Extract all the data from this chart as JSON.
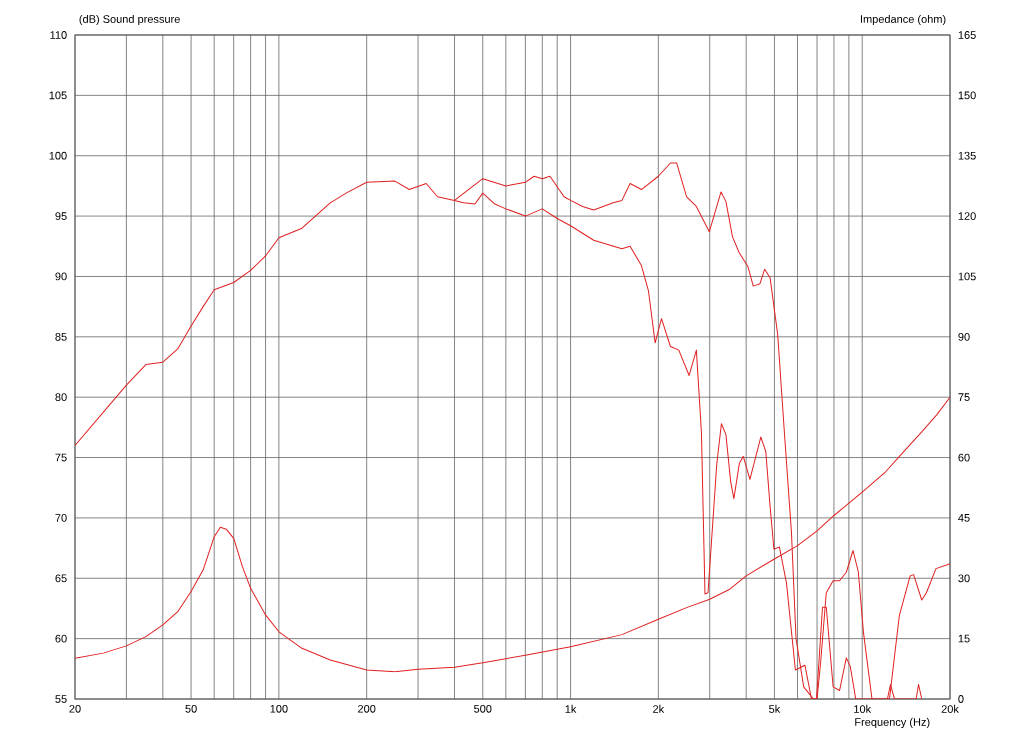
{
  "chart_data": {
    "type": "line",
    "xlabel": "Frequency  (Hz)",
    "ylabel": "(dB)  Sound pressure",
    "y2label": "Impedance  (ohm)",
    "log": "x",
    "grid": true,
    "legend": false,
    "marker": "none",
    "line_style": "solid",
    "xlim": [
      20,
      20000
    ],
    "ylim": [
      55,
      110
    ],
    "y2lim": [
      0,
      165
    ],
    "xticks": [
      20,
      {
        "value": 30,
        "label": null
      },
      {
        "value": 40,
        "label": null
      },
      50,
      {
        "value": 60,
        "label": null
      },
      {
        "value": 70,
        "label": null
      },
      {
        "value": 80,
        "label": null
      },
      {
        "value": 90,
        "label": null
      },
      100,
      200,
      {
        "value": 300,
        "label": null
      },
      {
        "value": 400,
        "label": null
      },
      500,
      {
        "value": 600,
        "label": null
      },
      {
        "value": 700,
        "label": null
      },
      {
        "value": 800,
        "label": null
      },
      {
        "value": 900,
        "label": null
      },
      {
        "value": 1000,
        "label": "1k"
      },
      {
        "value": 2000,
        "label": "2k"
      },
      {
        "value": 3000,
        "label": null
      },
      {
        "value": 4000,
        "label": null
      },
      {
        "value": 5000,
        "label": "5k"
      },
      {
        "value": 6000,
        "label": null
      },
      {
        "value": 7000,
        "label": null
      },
      {
        "value": 8000,
        "label": null
      },
      {
        "value": 9000,
        "label": null
      },
      {
        "value": 10000,
        "label": "10k"
      },
      {
        "value": 20000,
        "label": "20k"
      }
    ],
    "yticks": [
      55,
      60,
      65,
      70,
      75,
      80,
      85,
      90,
      95,
      100,
      105,
      110
    ],
    "y2ticks": [
      0,
      15,
      30,
      45,
      60,
      75,
      90,
      105,
      120,
      135,
      150,
      165
    ],
    "series": [
      {
        "color": "#e02020",
        "x": [
          20,
          30,
          35,
          40,
          45,
          50,
          55,
          60,
          70,
          80,
          90,
          100,
          120,
          150,
          170,
          200,
          250,
          280,
          320,
          350,
          400,
          500,
          600,
          700,
          750,
          800,
          850,
          950,
          1000,
          1100,
          1200,
          1400,
          1500,
          1600,
          1750,
          2000,
          2200,
          2310,
          2500,
          2700,
          2990,
          3280,
          3410,
          3590,
          3780,
          4060,
          4230,
          4460,
          4630,
          4830,
          5130,
          5430,
          5720,
          5930,
          6300,
          6800,
          7000,
          7200,
          7530,
          7950,
          8360,
          8820,
          9300,
          9700,
          10100,
          10800,
          12400,
          13400,
          14600,
          15000,
          16000,
          16600,
          17900,
          20000
        ],
        "values": [
          76,
          81,
          82.7,
          82.9,
          84,
          85.9,
          87.5,
          88.9,
          89.5,
          90.5,
          91.7,
          93.2,
          94,
          96.1,
          96.9,
          97.8,
          97.9,
          97.2,
          97.7,
          96.6,
          96.3,
          98.1,
          97.5,
          97.8,
          98.3,
          98.1,
          98.3,
          96.6,
          96.3,
          95.8,
          95.5,
          96.1,
          96.3,
          97.7,
          97.2,
          98.3,
          99.4,
          99.4,
          96.6,
          95.8,
          93.7,
          97,
          96.2,
          93.3,
          92,
          90.8,
          89.2,
          89.4,
          90.6,
          89.9,
          85.2,
          76.5,
          68.8,
          60,
          56,
          55,
          55,
          58,
          63.8,
          64.8,
          64.8,
          65.5,
          67.3,
          65.5,
          60.5,
          55,
          55,
          61.9,
          65.2,
          65.3,
          63.2,
          63.8,
          65.8,
          66.2
        ]
      },
      {
        "color": "#e02020",
        "x": [
          400,
          430,
          470,
          500,
          550,
          600,
          700,
          800,
          900,
          1000,
          1200,
          1500,
          1600,
          1750,
          1850,
          1950,
          2050,
          2200,
          2350,
          2550,
          2700,
          2810,
          2890,
          2960,
          3170,
          3290,
          3410,
          3540,
          3630,
          3790,
          3910,
          4120,
          4490,
          4670,
          4830,
          4980,
          5200,
          5500,
          5900,
          6360,
          6700,
          6970,
          7310,
          7530,
          7950,
          8360,
          8820,
          9100,
          9500,
          12200,
          12500,
          12900,
          15300,
          15600,
          16000
        ],
        "values": [
          96.3,
          96.1,
          96,
          96.9,
          96,
          95.6,
          95,
          95.6,
          94.8,
          94.2,
          93,
          92.3,
          92.5,
          90.9,
          88.8,
          84.5,
          86.5,
          84.2,
          83.9,
          81.8,
          83.9,
          77.1,
          63.7,
          63.8,
          74.4,
          77.8,
          76.9,
          73,
          71.6,
          74.5,
          75.1,
          73.2,
          76.7,
          75.5,
          71,
          67.4,
          67.6,
          64.6,
          57.4,
          57.8,
          55,
          55,
          62.6,
          62.6,
          56,
          55.7,
          58.4,
          57.7,
          55,
          55,
          56.2,
          55,
          55,
          56.2,
          55
        ]
      },
      {
        "color": "#e02020",
        "axis": "y2",
        "x": [
          20,
          25,
          30,
          35,
          40,
          45,
          50,
          55,
          60,
          63,
          66,
          70,
          75,
          80,
          90,
          100,
          120,
          150,
          200,
          250,
          300,
          400,
          500,
          700,
          1000,
          1500,
          2000,
          2500,
          3000,
          3500,
          4000,
          5000,
          6000,
          7000,
          8000,
          10000,
          12000,
          14000,
          16000,
          18000,
          20000
        ],
        "values": [
          10.1,
          11.4,
          13.2,
          15.5,
          18.4,
          21.7,
          26.7,
          32.1,
          40.3,
          42.7,
          42.2,
          39.9,
          32.9,
          27.5,
          20.9,
          16.7,
          12.6,
          9.7,
          7.2,
          6.8,
          7.4,
          7.9,
          9,
          10.9,
          13,
          16,
          19.8,
          22.7,
          24.8,
          27.2,
          30.6,
          34.8,
          38.1,
          41.8,
          45.6,
          51.4,
          56.4,
          61.8,
          66.4,
          70.6,
          75
        ]
      }
    ]
  }
}
